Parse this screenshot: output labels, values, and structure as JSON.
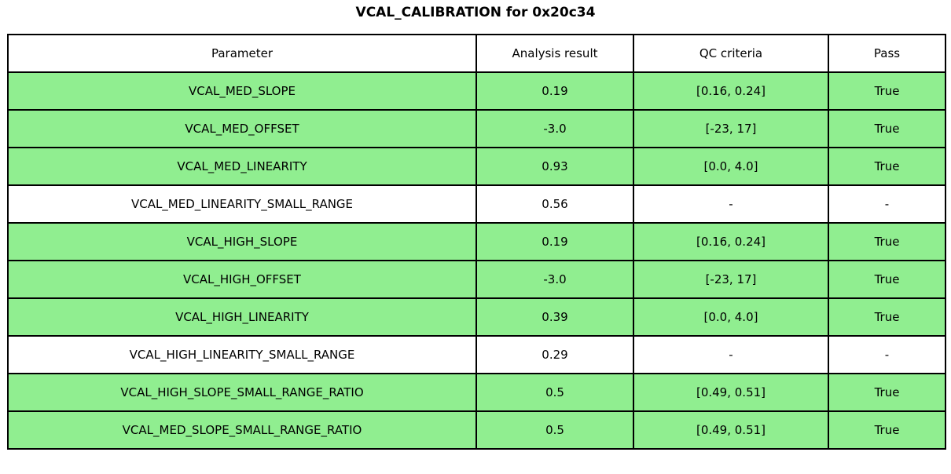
{
  "title": "VCAL_CALIBRATION for 0x20c34",
  "colors": {
    "pass_green": "#90ee90",
    "border": "#000000",
    "background": "#ffffff",
    "text": "#000000"
  },
  "chart_data": {
    "type": "table",
    "title": "VCAL_CALIBRATION for 0x20c34",
    "columns": [
      "Parameter",
      "Analysis result",
      "QC criteria",
      "Pass"
    ],
    "rows": [
      {
        "parameter": "VCAL_MED_SLOPE",
        "result": "0.19",
        "criteria": "[0.16, 0.24]",
        "pass": "True",
        "highlight": true
      },
      {
        "parameter": "VCAL_MED_OFFSET",
        "result": "-3.0",
        "criteria": "[-23, 17]",
        "pass": "True",
        "highlight": true
      },
      {
        "parameter": "VCAL_MED_LINEARITY",
        "result": "0.93",
        "criteria": "[0.0, 4.0]",
        "pass": "True",
        "highlight": true
      },
      {
        "parameter": "VCAL_MED_LINEARITY_SMALL_RANGE",
        "result": "0.56",
        "criteria": "-",
        "pass": "-",
        "highlight": false
      },
      {
        "parameter": "VCAL_HIGH_SLOPE",
        "result": "0.19",
        "criteria": "[0.16, 0.24]",
        "pass": "True",
        "highlight": true
      },
      {
        "parameter": "VCAL_HIGH_OFFSET",
        "result": "-3.0",
        "criteria": "[-23, 17]",
        "pass": "True",
        "highlight": true
      },
      {
        "parameter": "VCAL_HIGH_LINEARITY",
        "result": "0.39",
        "criteria": "[0.0, 4.0]",
        "pass": "True",
        "highlight": true
      },
      {
        "parameter": "VCAL_HIGH_LINEARITY_SMALL_RANGE",
        "result": "0.29",
        "criteria": "-",
        "pass": "-",
        "highlight": false
      },
      {
        "parameter": "VCAL_HIGH_SLOPE_SMALL_RANGE_RATIO",
        "result": "0.5",
        "criteria": "[0.49, 0.51]",
        "pass": "True",
        "highlight": true
      },
      {
        "parameter": "VCAL_MED_SLOPE_SMALL_RANGE_RATIO",
        "result": "0.5",
        "criteria": "[0.49, 0.51]",
        "pass": "True",
        "highlight": true
      }
    ]
  }
}
